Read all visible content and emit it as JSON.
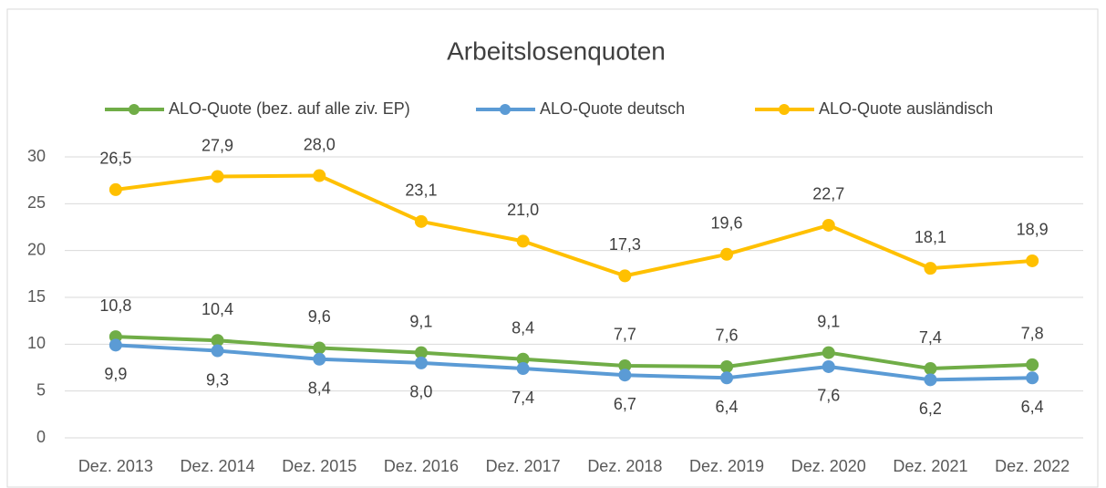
{
  "chart_data": {
    "type": "line",
    "title": "Arbeitslosenquoten",
    "categories": [
      "Dez. 2013",
      "Dez. 2014",
      "Dez. 2015",
      "Dez. 2016",
      "Dez. 2017",
      "Dez. 2018",
      "Dez. 2019",
      "Dez. 2020",
      "Dez. 2021",
      "Dez. 2022"
    ],
    "series": [
      {
        "name": "ALO-Quote (bez. auf alle ziv. EP)",
        "color": "#70ad47",
        "values": [
          10.8,
          10.4,
          9.6,
          9.1,
          8.4,
          7.7,
          7.6,
          9.1,
          7.4,
          7.8
        ],
        "value_labels": [
          "10,8",
          "10,4",
          "9,6",
          "9,1",
          "8,4",
          "7,7",
          "7,6",
          "9,1",
          "7,4",
          "7,8"
        ]
      },
      {
        "name": "ALO-Quote deutsch",
        "color": "#5b9bd5",
        "values": [
          9.9,
          9.3,
          8.4,
          8.0,
          7.4,
          6.7,
          6.4,
          7.6,
          6.2,
          6.4
        ],
        "value_labels": [
          "9,9",
          "9,3",
          "8,4",
          "8,0",
          "7,4",
          "6,7",
          "6,4",
          "7,6",
          "6,2",
          "6,4"
        ]
      },
      {
        "name": "ALO-Quote ausländisch",
        "color": "#ffc000",
        "values": [
          26.5,
          27.9,
          28.0,
          23.1,
          21.0,
          17.3,
          19.6,
          22.7,
          18.1,
          18.9
        ],
        "value_labels": [
          "26,5",
          "27,9",
          "28,0",
          "23,1",
          "21,0",
          "17,3",
          "19,6",
          "22,7",
          "18,1",
          "18,9"
        ]
      }
    ],
    "ylim": [
      0,
      30
    ],
    "yticks": [
      0,
      5,
      10,
      15,
      20,
      25,
      30
    ],
    "grid": true,
    "legend": "top"
  }
}
